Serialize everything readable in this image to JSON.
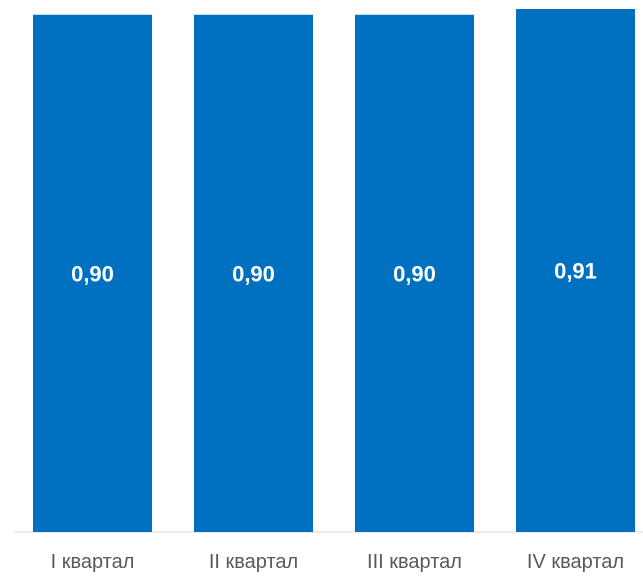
{
  "chart_data": {
    "type": "bar",
    "categories": [
      "I квартал",
      "II квартал",
      "III квартал",
      "IV квартал"
    ],
    "values": [
      0.9,
      0.9,
      0.9,
      0.91
    ],
    "data_labels": [
      "0,90",
      "0,90",
      "0,90",
      "0,91"
    ],
    "title": "",
    "xlabel": "",
    "ylabel": "",
    "ylim": [
      0,
      0.91
    ],
    "grid": false,
    "legend": "none",
    "bar_color": "#0070C0"
  }
}
